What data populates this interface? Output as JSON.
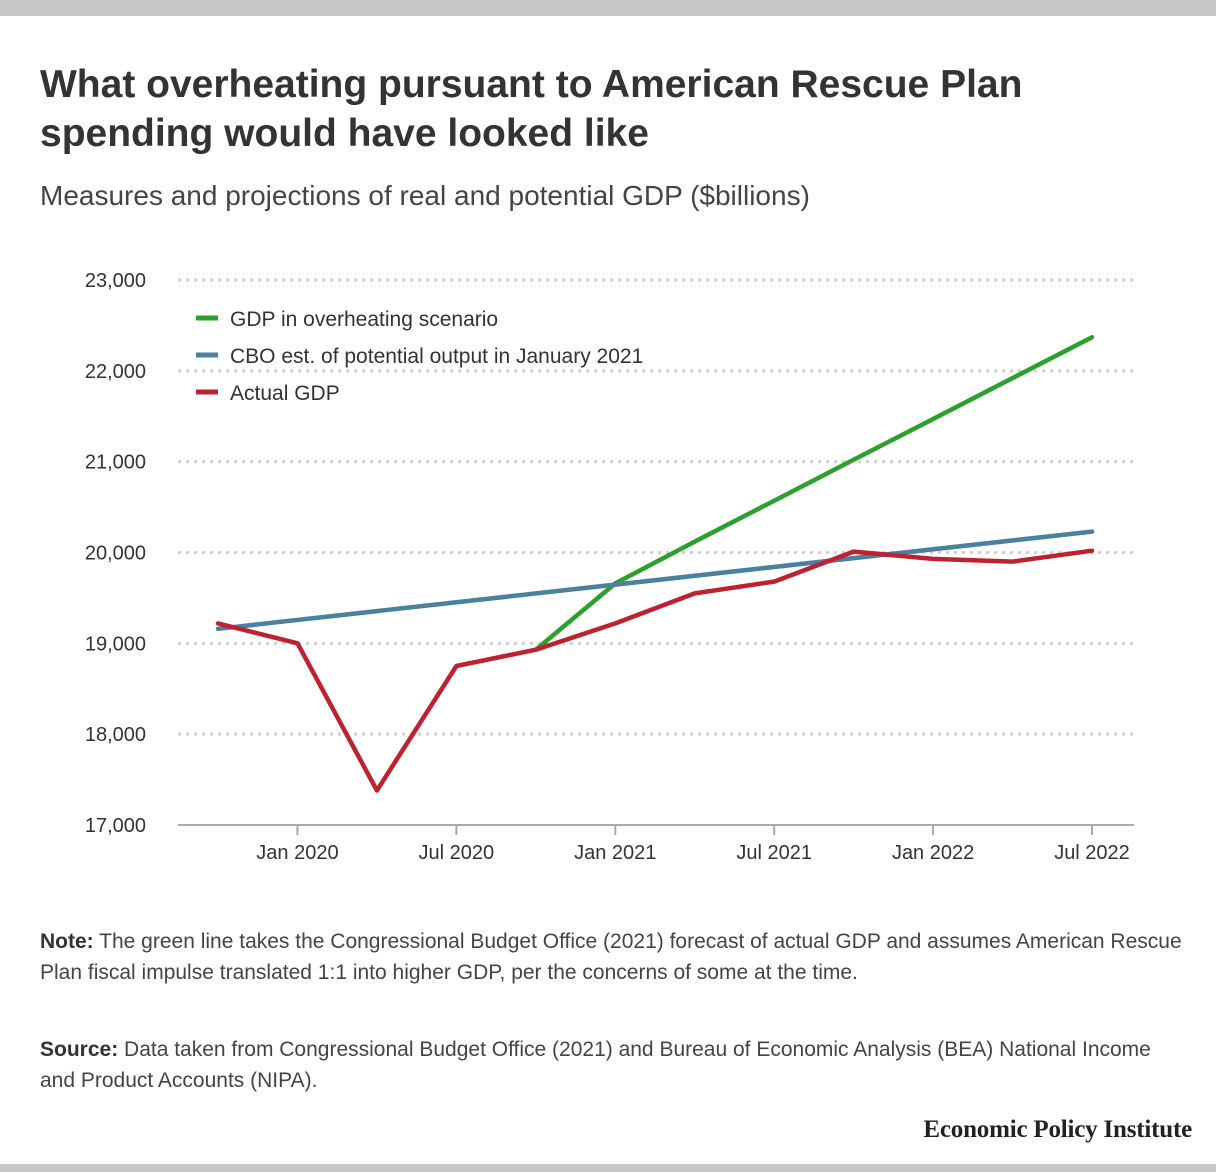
{
  "header": {
    "title": "What overheating pursuant to American Rescue Plan spending would have looked like",
    "subtitle": "Measures and projections of real and potential GDP ($billions)"
  },
  "footer": {
    "note_label": "Note:",
    "note_text": "The green line takes the Congressional Budget Office (2021) forecast of actual GDP and assumes American Rescue Plan fiscal impulse translated 1:1 into higher GDP, per the concerns of some at the time.",
    "source_label": "Source:",
    "source_text": "Data taken from Congressional Budget Office (2021) and Bureau of Economic Analysis (BEA) National Income and Product Accounts (NIPA).",
    "brand": "Economic Policy Institute"
  },
  "chart_data": {
    "type": "line",
    "ylim": [
      17000,
      23000
    ],
    "y_ticks": [
      17000,
      18000,
      19000,
      20000,
      21000,
      22000,
      23000
    ],
    "y_tick_labels": [
      "17,000",
      "18,000",
      "19,000",
      "20,000",
      "21,000",
      "22,000",
      "23,000"
    ],
    "x_tick_labels": [
      "Jan 2020",
      "Jul 2020",
      "Jan 2021",
      "Jul 2021",
      "Jan 2022",
      "Jul 2022"
    ],
    "x_tick_dates": [
      "2020-01",
      "2020-07",
      "2021-01",
      "2021-07",
      "2022-01",
      "2022-07"
    ],
    "x_range": [
      "2019-10",
      "2022-07"
    ],
    "grid": true,
    "legend_position": "top-left",
    "series": [
      {
        "name": "GDP in overheating scenario",
        "color": "#2ca02c",
        "points": [
          {
            "x": "2020-10",
            "y": 18930
          },
          {
            "x": "2021-01",
            "y": 19660
          },
          {
            "x": "2021-04",
            "y": 20120
          },
          {
            "x": "2021-07",
            "y": 20570
          },
          {
            "x": "2021-10",
            "y": 21020
          },
          {
            "x": "2022-01",
            "y": 21470
          },
          {
            "x": "2022-04",
            "y": 21920
          },
          {
            "x": "2022-07",
            "y": 22370
          }
        ]
      },
      {
        "name": "CBO est. of potential output in January 2021",
        "color": "#4a81a1",
        "points": [
          {
            "x": "2019-10",
            "y": 19160
          },
          {
            "x": "2022-07",
            "y": 20230
          }
        ]
      },
      {
        "name": "Actual GDP",
        "color": "#be2130",
        "points": [
          {
            "x": "2019-10",
            "y": 19220
          },
          {
            "x": "2020-01",
            "y": 19000
          },
          {
            "x": "2020-04",
            "y": 17380
          },
          {
            "x": "2020-07",
            "y": 18750
          },
          {
            "x": "2020-10",
            "y": 18930
          },
          {
            "x": "2021-01",
            "y": 19220
          },
          {
            "x": "2021-04",
            "y": 19550
          },
          {
            "x": "2021-07",
            "y": 19680
          },
          {
            "x": "2021-10",
            "y": 20010
          },
          {
            "x": "2022-01",
            "y": 19930
          },
          {
            "x": "2022-04",
            "y": 19900
          },
          {
            "x": "2022-07",
            "y": 20020
          }
        ]
      }
    ]
  }
}
